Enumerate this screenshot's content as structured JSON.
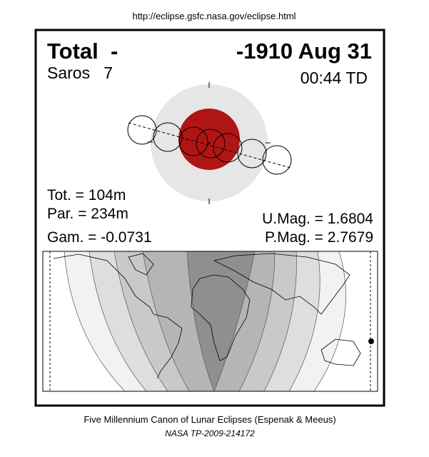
{
  "header": {
    "url": "http://eclipse.gsfc.nasa.gov/eclipse.html"
  },
  "eclipse": {
    "type": "Total  -",
    "date": "-1910 Aug 31",
    "saros": "Saros   7",
    "time": "00:44 TD",
    "totality": "Tot. = 104m",
    "partial": "Par. = 234m",
    "gamma": "Gam. = -0.0731",
    "umbral_magnitude": "U.Mag. = 1.6804",
    "penumbral_magnitude": "P.Mag. = 2.7679"
  },
  "footer": {
    "title": "Five Millennium Canon of Lunar Eclipses (Espenak & Meeus)",
    "reference": "NASA TP-2009-214172"
  }
}
